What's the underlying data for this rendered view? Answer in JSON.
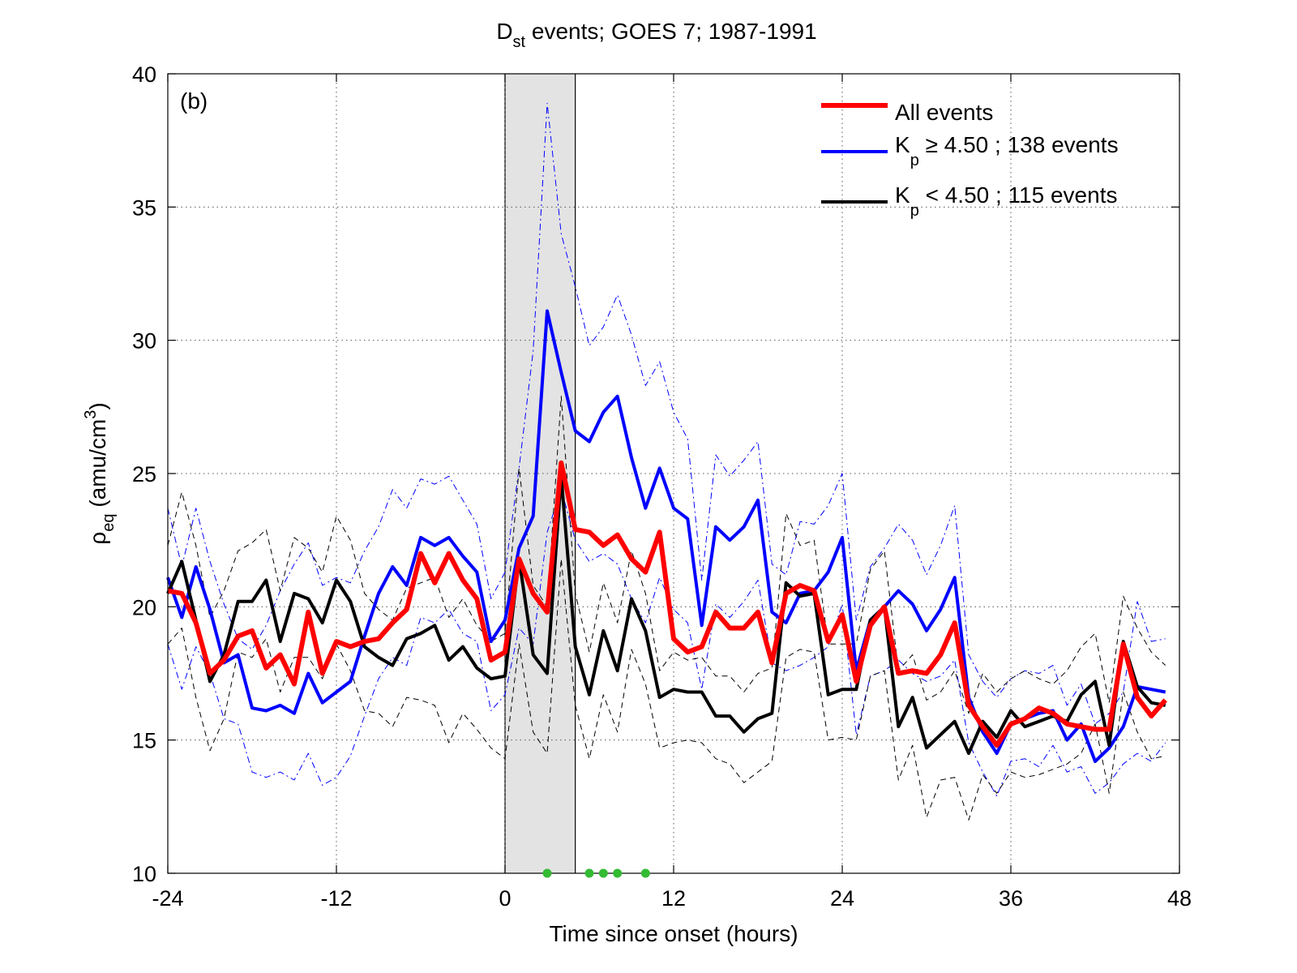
{
  "chart_data": {
    "type": "line",
    "title": {
      "main": "D",
      "sub": "st",
      "rest": " events; GOES 7; 1987-1991"
    },
    "panel_label": "(b)",
    "xlabel": "Time since onset (hours)",
    "ylabel": {
      "main": "ρ",
      "sub": "eq",
      "rest": " (amu/cm",
      "sup": "3",
      "close": ")"
    },
    "xlim": [
      -24,
      48
    ],
    "ylim": [
      10,
      40
    ],
    "xticks": [
      -24,
      -12,
      0,
      12,
      24,
      36,
      48
    ],
    "yticks": [
      10,
      15,
      20,
      25,
      30,
      35,
      40
    ],
    "grid": true,
    "legend_position": "top-right",
    "shaded_interval": [
      0,
      5
    ],
    "x": [
      -24,
      -23,
      -22,
      -21,
      -20,
      -19,
      -18,
      -17,
      -16,
      -15,
      -14,
      -13,
      -12,
      -11,
      -10,
      -9,
      -8,
      -7,
      -6,
      -5,
      -4,
      -3,
      -2,
      -1,
      0,
      1,
      2,
      3,
      4,
      5,
      6,
      7,
      8,
      9,
      10,
      11,
      12,
      13,
      14,
      15,
      16,
      17,
      18,
      19,
      20,
      21,
      22,
      23,
      24,
      25,
      26,
      27,
      28,
      29,
      30,
      31,
      32,
      33,
      34,
      35,
      36,
      37,
      38,
      39,
      40,
      41,
      42,
      43,
      44,
      45,
      46,
      47
    ],
    "series": [
      {
        "name": "All events",
        "color": "#ff0000",
        "style": "thick",
        "values": [
          20.6,
          20.5,
          19.4,
          17.5,
          18.0,
          18.9,
          19.1,
          17.7,
          18.2,
          17.1,
          19.8,
          17.5,
          18.7,
          18.5,
          18.7,
          18.8,
          19.4,
          19.9,
          22.0,
          20.9,
          22.0,
          21.0,
          20.3,
          18.0,
          18.3,
          21.8,
          20.5,
          19.8,
          25.4,
          22.9,
          22.8,
          22.3,
          22.7,
          21.8,
          21.3,
          22.8,
          18.8,
          18.3,
          18.5,
          19.8,
          19.2,
          19.2,
          19.8,
          17.9,
          20.5,
          20.8,
          20.6,
          18.7,
          19.7,
          17.2,
          19.3,
          20.0,
          17.5,
          17.6,
          17.5,
          18.2,
          19.4,
          16.3,
          15.5,
          14.8,
          15.6,
          15.8,
          16.2,
          16.0,
          15.6,
          15.5,
          15.4,
          15.4,
          18.6,
          16.6,
          15.9,
          16.5
        ]
      },
      {
        "name": "Kp ≥ 4.50 ; 138 events",
        "color": "#0000ff",
        "style": "medium",
        "values": [
          21.1,
          19.6,
          21.5,
          19.9,
          17.9,
          18.2,
          16.2,
          16.1,
          16.3,
          16.0,
          17.5,
          16.4,
          16.8,
          17.2,
          18.9,
          20.5,
          21.5,
          20.8,
          22.6,
          22.3,
          22.6,
          21.9,
          21.3,
          18.7,
          19.5,
          22.2,
          23.4,
          31.1,
          28.8,
          26.6,
          26.2,
          27.3,
          27.9,
          25.6,
          23.7,
          25.2,
          23.7,
          23.3,
          19.3,
          23.0,
          22.5,
          23.0,
          24.0,
          19.8,
          19.4,
          20.5,
          20.6,
          21.3,
          22.6,
          17.6,
          19.5,
          20.0,
          20.6,
          20.1,
          19.1,
          19.9,
          21.1,
          16.6,
          15.3,
          14.5,
          15.6,
          15.8,
          16.0,
          16.1,
          15.0,
          15.6,
          14.2,
          14.7,
          15.5,
          17.0,
          16.9,
          16.8
        ]
      },
      {
        "name": "Kp < 4.50 ; 115 events",
        "color": "#000000",
        "style": "medium",
        "values": [
          20.5,
          21.7,
          19.5,
          17.2,
          18.2,
          20.2,
          20.2,
          21.0,
          18.7,
          20.5,
          20.3,
          19.4,
          21.0,
          20.2,
          18.5,
          18.1,
          17.8,
          18.8,
          19.0,
          19.3,
          18.0,
          18.5,
          17.7,
          17.3,
          17.4,
          21.8,
          18.2,
          17.5,
          24.9,
          18.5,
          16.7,
          19.1,
          17.6,
          20.3,
          19.1,
          16.6,
          16.9,
          16.8,
          16.8,
          15.9,
          15.9,
          15.3,
          15.8,
          16.0,
          20.9,
          20.4,
          20.5,
          16.7,
          16.9,
          16.9,
          19.5,
          20.0,
          15.5,
          16.6,
          14.7,
          15.2,
          15.7,
          14.5,
          15.7,
          15.1,
          16.1,
          15.5,
          15.7,
          15.9,
          15.7,
          16.7,
          17.2,
          14.8,
          18.7,
          17.0,
          16.4,
          16.3
        ]
      },
      {
        "name": "",
        "color": "#0000ff",
        "style": "dashdot",
        "values": [
          23.7,
          21.5,
          23.7,
          21.7,
          20.1,
          18.8,
          18.4,
          19.3,
          20.6,
          21.6,
          22.4,
          20.8,
          21.1,
          20.9,
          22.1,
          23.0,
          24.4,
          23.7,
          24.8,
          24.6,
          24.9,
          24.0,
          23.1,
          20.3,
          21.3,
          25.2,
          29.6,
          38.9,
          34.0,
          32.0,
          29.8,
          30.5,
          31.7,
          30.2,
          28.3,
          29.2,
          27.3,
          26.3,
          21.0,
          25.7,
          24.9,
          25.5,
          26.2,
          21.6,
          21.2,
          23.2,
          23.1,
          23.8,
          25.0,
          19.5,
          21.5,
          22.2,
          23.1,
          22.5,
          21.2,
          22.3,
          23.8,
          18.2,
          17.2,
          16.6,
          17.3,
          17.6,
          17.5,
          17.8,
          16.3,
          17.1,
          15.6,
          16.0,
          16.8,
          20.2,
          18.7,
          18.8
        ]
      },
      {
        "name": "",
        "color": "#0000ff",
        "style": "dashdot",
        "values": [
          18.6,
          16.9,
          18.5,
          17.5,
          15.8,
          15.6,
          13.8,
          13.6,
          13.8,
          13.5,
          14.5,
          13.3,
          13.6,
          14.4,
          15.9,
          17.3,
          18.1,
          17.8,
          19.6,
          19.4,
          19.9,
          19.0,
          18.7,
          16.1,
          16.7,
          19.2,
          18.6,
          22.8,
          24.4,
          22.5,
          21.7,
          22.0,
          21.6,
          20.3,
          19.4,
          21.1,
          19.9,
          19.4,
          16.9,
          20.1,
          19.6,
          20.2,
          21.0,
          17.9,
          17.6,
          17.8,
          18.1,
          18.5,
          20.1,
          15.2,
          17.4,
          17.6,
          18.0,
          17.5,
          17.2,
          17.4,
          18.0,
          14.9,
          13.8,
          12.9,
          14.2,
          14.3,
          14.0,
          14.8,
          13.8,
          14.0,
          13.0,
          13.4,
          14.1,
          14.5,
          14.2,
          14.9
        ]
      },
      {
        "name": "",
        "color": "#000000",
        "style": "dashed",
        "values": [
          22.3,
          24.3,
          22.3,
          19.6,
          20.6,
          22.1,
          22.4,
          22.9,
          20.6,
          22.6,
          22.2,
          21.3,
          23.4,
          22.5,
          20.5,
          19.9,
          19.5,
          20.7,
          20.9,
          21.1,
          19.6,
          20.3,
          19.3,
          18.7,
          19.0,
          25.2,
          20.8,
          20.0,
          27.9,
          20.5,
          18.3,
          20.9,
          19.4,
          22.1,
          20.5,
          17.6,
          18.3,
          18.0,
          18.1,
          17.4,
          17.4,
          16.8,
          17.5,
          17.7,
          23.5,
          22.3,
          22.5,
          18.6,
          18.6,
          18.6,
          21.4,
          22.1,
          17.6,
          18.2,
          16.5,
          16.8,
          17.6,
          16.0,
          17.5,
          16.8,
          17.3,
          17.6,
          17.3,
          17.1,
          17.6,
          18.5,
          19.0,
          16.4,
          20.4,
          19.2,
          18.3,
          17.8
        ]
      },
      {
        "name": "",
        "color": "#000000",
        "style": "dashed",
        "values": [
          18.6,
          19.2,
          16.6,
          14.6,
          15.8,
          18.3,
          18.1,
          18.8,
          16.8,
          18.1,
          18.1,
          17.3,
          18.6,
          17.6,
          16.1,
          16.0,
          15.5,
          16.6,
          16.5,
          16.3,
          14.9,
          16.0,
          15.4,
          14.7,
          14.3,
          18.6,
          15.3,
          14.5,
          21.8,
          16.3,
          14.3,
          16.7,
          15.3,
          18.4,
          17.1,
          14.7,
          14.9,
          15.0,
          14.9,
          14.3,
          14.1,
          13.4,
          13.8,
          14.2,
          18.1,
          18.4,
          18.3,
          15.0,
          15.1,
          15.0,
          17.4,
          17.6,
          13.5,
          14.8,
          12.1,
          13.5,
          13.6,
          12.0,
          13.7,
          13.0,
          13.8,
          13.6,
          13.7,
          13.9,
          14.1,
          14.5,
          15.6,
          13.0,
          16.8,
          15.3,
          14.3,
          14.4
        ]
      }
    ],
    "legend": [
      {
        "label": "All events",
        "color": "#ff0000"
      },
      {
        "main": "K",
        "sub": "p",
        "rest": "  ≥ 4.50 ; 138 events",
        "color": "#0000ff"
      },
      {
        "main": "K",
        "sub": "p",
        "rest": " < 4.50 ; 115 events",
        "color": "#000000"
      }
    ],
    "markers": {
      "x": [
        3,
        6,
        7,
        8,
        10
      ],
      "color": "#33bb33"
    }
  }
}
